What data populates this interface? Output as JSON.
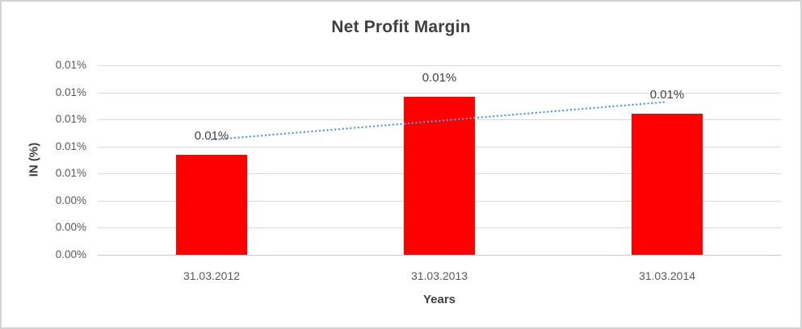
{
  "window": {
    "background": "#ffffff",
    "border_color": "#d3d3d3"
  },
  "chart_data": {
    "type": "bar",
    "title": "Net Profit Margin",
    "xlabel": "Years",
    "ylabel": "IN (%)",
    "categories": [
      "31.03.2012",
      "31.03.2013",
      "31.03.2014"
    ],
    "series": [
      {
        "name": "Net Profit Margin",
        "color": "#ff0000",
        "values_percent": [
          0.0074,
          0.0117,
          0.0104
        ],
        "data_labels": [
          "0.01%",
          "0.01%",
          "0.01%"
        ]
      }
    ],
    "trendline": {
      "style": "round-dot",
      "color": "#5b9bd5",
      "start_value_percent": 0.0085,
      "end_value_percent": 0.0113
    },
    "y_axis": {
      "min_percent": 0,
      "max_percent": 0.014,
      "major_unit_percent": 0.002,
      "tick_labels_top_to_bottom": [
        "0.01%",
        "0.01%",
        "0.01%",
        "0.01%",
        "0.01%",
        "0.00%",
        "0.00%",
        "0.00%"
      ]
    },
    "grid": true,
    "legend": false,
    "colors": {
      "title_text": "#404040",
      "tick_text": "#595959",
      "data_label_text": "#404040",
      "gridline": "#d9d9d9",
      "axis_line": "#c3c7cb"
    }
  }
}
